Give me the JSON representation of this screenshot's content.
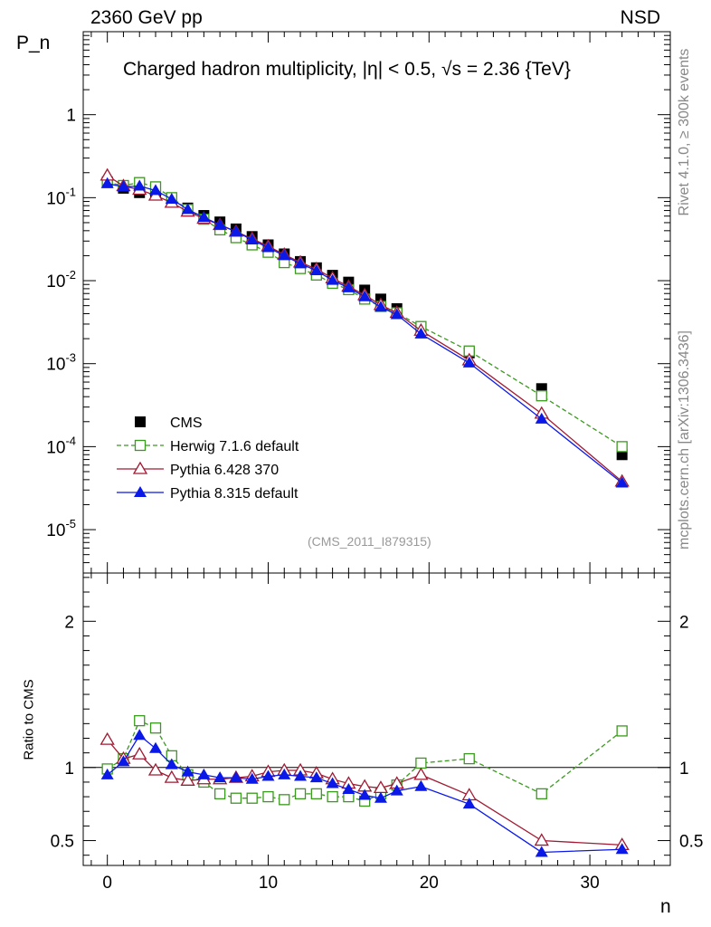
{
  "header": {
    "left_label": "2360 GeV pp",
    "right_label": "NSD"
  },
  "side_text": {
    "rivet": "Rivet 4.1.0, ≥ 300k events",
    "mcplots": "mcplots.cern.ch [arXiv:1306.3436]"
  },
  "chart_data": {
    "type": "scatter",
    "title": "Charged hadron multiplicity, |η| < 0.5, √s = 2.36 {TeV}",
    "analysis_id": "(CMS_2011_I879315)",
    "xlabel": "n",
    "ylabel": "P_n",
    "ratio_ylabel": "Ratio to CMS",
    "xlim": [
      -1.5,
      35
    ],
    "ylim": [
      3e-06,
      10
    ],
    "yscale": "log",
    "ratio_ylim": [
      0.33,
      2.33
    ],
    "x_ticks": [
      "0",
      "10",
      "20",
      "30"
    ],
    "y_ticks": [
      "10^-5",
      "10^-4",
      "10^-3",
      "10^-2",
      "10^-1",
      "1"
    ],
    "ratio_ticks": [
      "0.5",
      "1",
      "2"
    ],
    "legend_position": "lower-left",
    "series": [
      {
        "name": "CMS",
        "color": "#000000",
        "marker": "filled-square",
        "line": "none",
        "x": [
          0,
          1,
          2,
          3,
          4,
          5,
          6,
          7,
          8,
          9,
          10,
          11,
          12,
          13,
          14,
          15,
          16,
          17,
          18,
          19.5,
          22.5,
          27,
          32
        ],
        "values": [
          0.155,
          0.13,
          0.115,
          0.108,
          0.093,
          0.075,
          0.061,
          0.051,
          0.042,
          0.034,
          0.027,
          0.021,
          0.017,
          0.0143,
          0.0116,
          0.0096,
          0.0077,
          0.006,
          0.0046,
          0.0026,
          0.00135,
          0.0005,
          8e-05
        ]
      },
      {
        "name": "Herwig 7.1.6 default",
        "color": "#3a9a1d",
        "marker": "open-square",
        "line": "dashed",
        "x": [
          0,
          1,
          2,
          3,
          4,
          5,
          6,
          7,
          8,
          9,
          10,
          11,
          12,
          13,
          14,
          15,
          16,
          17,
          18,
          19.5,
          22.5,
          27,
          32
        ],
        "values": [
          0.152,
          0.14,
          0.152,
          0.135,
          0.1,
          0.072,
          0.055,
          0.041,
          0.033,
          0.027,
          0.022,
          0.0165,
          0.014,
          0.0117,
          0.0093,
          0.0078,
          0.006,
          0.0049,
          0.0041,
          0.0028,
          0.00142,
          0.00041,
          0.0001
        ]
      },
      {
        "name": "Pythia 6.428 370",
        "color": "#a01a33",
        "marker": "open-triangle",
        "line": "solid",
        "x": [
          0,
          1,
          2,
          3,
          4,
          5,
          6,
          7,
          8,
          9,
          10,
          11,
          12,
          13,
          14,
          15,
          16,
          17,
          18,
          19.5,
          22.5,
          27,
          32
        ],
        "values": [
          0.185,
          0.138,
          0.125,
          0.106,
          0.087,
          0.068,
          0.056,
          0.047,
          0.039,
          0.032,
          0.026,
          0.0206,
          0.0166,
          0.0138,
          0.0107,
          0.0085,
          0.0067,
          0.0051,
          0.0041,
          0.0025,
          0.0011,
          0.00025,
          3.8e-05
        ]
      },
      {
        "name": "Pythia 8.315 default",
        "color": "#0a18e8",
        "marker": "filled-triangle",
        "line": "solid",
        "x": [
          0,
          1,
          2,
          3,
          4,
          5,
          6,
          7,
          8,
          9,
          10,
          11,
          12,
          13,
          14,
          15,
          16,
          17,
          18,
          19.5,
          22.5,
          27,
          32
        ],
        "values": [
          0.148,
          0.135,
          0.138,
          0.122,
          0.096,
          0.072,
          0.058,
          0.047,
          0.039,
          0.031,
          0.025,
          0.02,
          0.016,
          0.0132,
          0.0101,
          0.0082,
          0.0064,
          0.0048,
          0.0039,
          0.00228,
          0.00102,
          0.000215,
          3.65e-05
        ]
      }
    ],
    "ratio_series": [
      {
        "name": "Herwig 7.1.6 default",
        "x": [
          0,
          1,
          2,
          3,
          4,
          5,
          6,
          7,
          8,
          9,
          10,
          11,
          12,
          13,
          14,
          15,
          16,
          17,
          18,
          19.5,
          22.5,
          27,
          32
        ],
        "values": [
          0.99,
          1.06,
          1.32,
          1.27,
          1.08,
          0.95,
          0.9,
          0.82,
          0.79,
          0.79,
          0.8,
          0.78,
          0.82,
          0.82,
          0.8,
          0.8,
          0.77,
          0.82,
          0.88,
          1.03,
          1.06,
          0.82,
          1.25
        ]
      },
      {
        "name": "Pythia 6.428 370",
        "x": [
          0,
          1,
          2,
          3,
          4,
          5,
          6,
          7,
          8,
          9,
          10,
          11,
          12,
          13,
          14,
          15,
          16,
          17,
          18,
          19.5,
          22.5,
          27,
          32
        ],
        "values": [
          1.19,
          1.06,
          1.09,
          0.98,
          0.93,
          0.91,
          0.92,
          0.92,
          0.93,
          0.94,
          0.97,
          0.98,
          0.98,
          0.96,
          0.92,
          0.89,
          0.87,
          0.86,
          0.89,
          0.95,
          0.81,
          0.5,
          0.47
        ]
      },
      {
        "name": "Pythia 8.315 default",
        "x": [
          0,
          1,
          2,
          3,
          4,
          5,
          6,
          7,
          8,
          9,
          10,
          11,
          12,
          13,
          14,
          15,
          16,
          17,
          18,
          19.5,
          22.5,
          27,
          32
        ],
        "values": [
          0.95,
          1.04,
          1.22,
          1.13,
          1.02,
          0.97,
          0.95,
          0.93,
          0.93,
          0.92,
          0.94,
          0.95,
          0.94,
          0.93,
          0.89,
          0.85,
          0.81,
          0.79,
          0.84,
          0.87,
          0.75,
          0.42,
          0.44
        ]
      }
    ]
  }
}
